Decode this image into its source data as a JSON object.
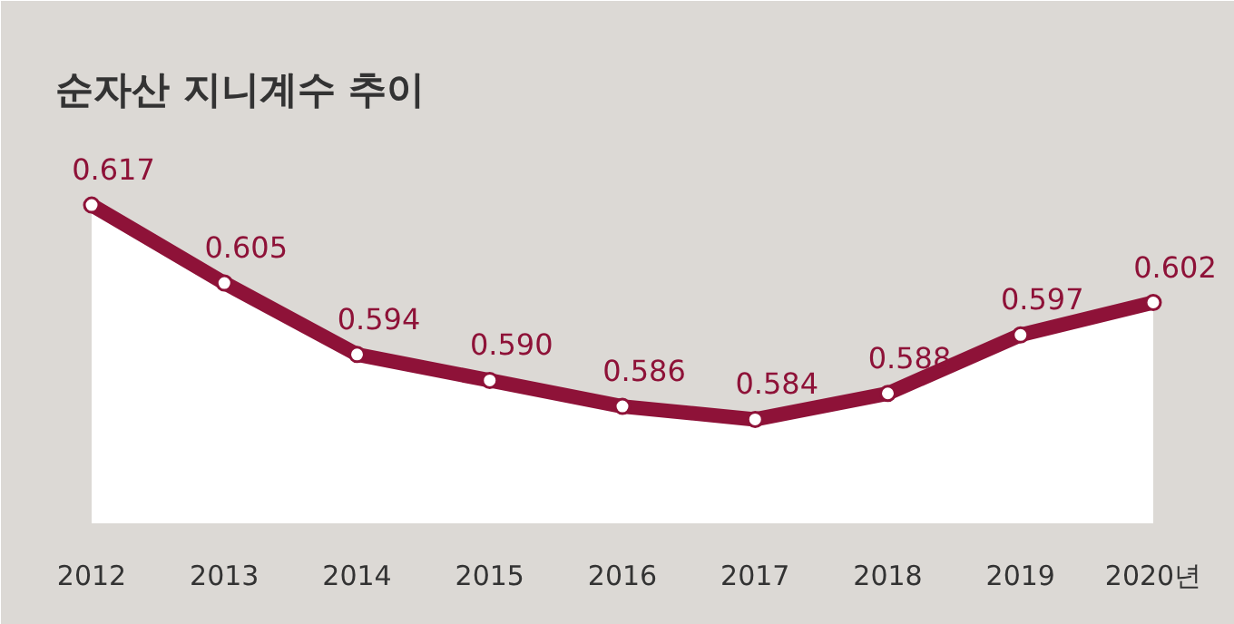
{
  "chart_data": {
    "type": "area",
    "title": "순자산 지니계수 추이",
    "categories": [
      "2012",
      "2013",
      "2014",
      "2015",
      "2016",
      "2017",
      "2018",
      "2019",
      "2020년"
    ],
    "series": [
      {
        "color": "#8e1238",
        "values": [
          0.617,
          0.605,
          0.594,
          0.59,
          0.586,
          0.584,
          0.588,
          0.597,
          0.602
        ],
        "value_labels": [
          "0.617",
          "0.605",
          "0.594",
          "0.590",
          "0.586",
          "0.584",
          "0.588",
          "0.597",
          "0.602"
        ]
      }
    ],
    "ylim": [
      0.568,
      0.63
    ],
    "marker": "circle"
  }
}
